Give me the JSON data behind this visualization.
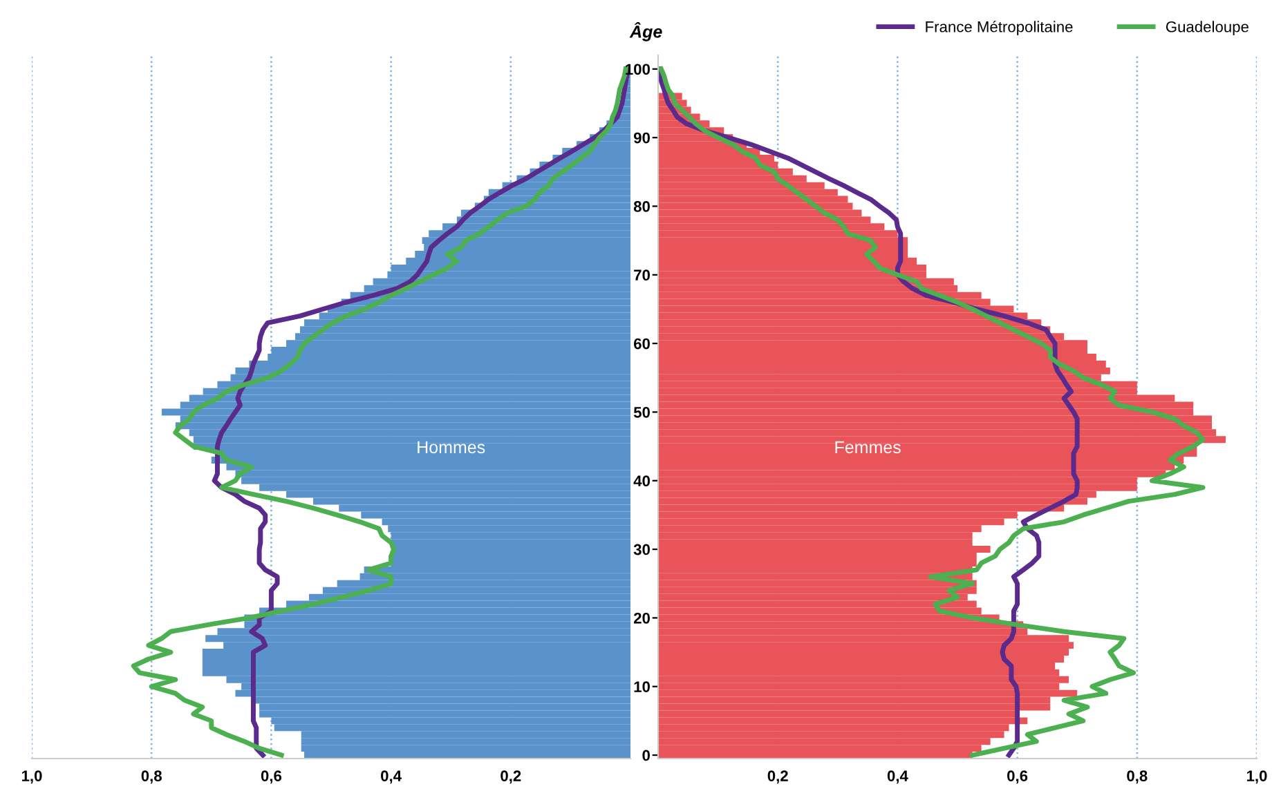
{
  "chart_data": [
    {
      "type": "bar",
      "orientation": "horizontal",
      "x": [
        0,
        1,
        2,
        3,
        4,
        5,
        6,
        7,
        8,
        9,
        10,
        11,
        12,
        13,
        14,
        15,
        16,
        17,
        18,
        19,
        20,
        21,
        22,
        23,
        24,
        25,
        26,
        27,
        28,
        29,
        30,
        31,
        32,
        33,
        34,
        35,
        36,
        37,
        38,
        39,
        40,
        41,
        42,
        43,
        44,
        45,
        46,
        47,
        48,
        49,
        50,
        51,
        52,
        53,
        54,
        55,
        56,
        57,
        58,
        59,
        60,
        61,
        62,
        63,
        64,
        65,
        66,
        67,
        68,
        69,
        70,
        71,
        72,
        73,
        74,
        75,
        76,
        77,
        78,
        79,
        80,
        81,
        82,
        83,
        84,
        85,
        86,
        87,
        88,
        89,
        90,
        91,
        92,
        93,
        94,
        95,
        96,
        97,
        98,
        99,
        100
      ],
      "xlim": [
        1.0,
        0
      ],
      "xticks": [
        {
          "value": 1.0,
          "label": "1,0"
        },
        {
          "value": 0.8,
          "label": "0,8"
        },
        {
          "value": 0.6,
          "label": "0,6"
        },
        {
          "value": 0.4,
          "label": "0,4"
        },
        {
          "value": 0.2,
          "label": "0,2"
        }
      ],
      "ylim": [
        -0.5,
        102
      ],
      "yticks": [
        0,
        10,
        20,
        30,
        40,
        50,
        60,
        70,
        80,
        90,
        100
      ],
      "grid": "x",
      "tick_labels": "x",
      "legend": false,
      "series": [
        {
          "name": "Hommes",
          "color": "#5a93cc",
          "values": [
            0.545,
            0.55,
            0.55,
            0.55,
            0.595,
            0.6,
            0.62,
            0.62,
            0.63,
            0.66,
            0.65,
            0.675,
            0.715,
            0.715,
            0.715,
            0.715,
            0.68,
            0.71,
            0.69,
            0.645,
            0.645,
            0.62,
            0.575,
            0.537,
            0.514,
            0.49,
            0.452,
            0.445,
            0.4,
            0.4,
            0.4,
            0.4,
            0.4,
            0.405,
            0.415,
            0.45,
            0.487,
            0.53,
            0.575,
            0.62,
            0.65,
            0.66,
            0.675,
            0.7,
            0.69,
            0.73,
            0.73,
            0.737,
            0.76,
            0.752,
            0.783,
            0.752,
            0.737,
            0.714,
            0.69,
            0.668,
            0.66,
            0.637,
            0.606,
            0.6,
            0.575,
            0.56,
            0.552,
            0.545,
            0.52,
            0.506,
            0.483,
            0.468,
            0.445,
            0.43,
            0.406,
            0.4,
            0.375,
            0.36,
            0.345,
            0.348,
            0.337,
            0.314,
            0.29,
            0.283,
            0.26,
            0.245,
            0.237,
            0.214,
            0.19,
            0.168,
            0.152,
            0.13,
            0.114,
            0.09,
            0.068,
            0.052,
            0.04,
            0.03,
            0.022,
            0.016,
            0.012,
            0.008,
            0.005,
            0.003,
            0.002
          ]
        },
        {
          "type": "line",
          "color": "#5a2a8c",
          "values": [
            0.614,
            0.625,
            0.625,
            0.625,
            0.625,
            0.63,
            0.63,
            0.63,
            0.63,
            0.63,
            0.63,
            0.63,
            0.63,
            0.63,
            0.63,
            0.63,
            0.61,
            0.615,
            0.633,
            0.62,
            0.62,
            0.6,
            0.6,
            0.6,
            0.6,
            0.59,
            0.59,
            0.61,
            0.62,
            0.62,
            0.62,
            0.618,
            0.618,
            0.618,
            0.61,
            0.61,
            0.62,
            0.645,
            0.66,
            0.683,
            0.695,
            0.69,
            0.69,
            0.69,
            0.69,
            0.69,
            0.687,
            0.683,
            0.675,
            0.668,
            0.66,
            0.652,
            0.656,
            0.652,
            0.645,
            0.637,
            0.633,
            0.63,
            0.625,
            0.62,
            0.62,
            0.618,
            0.614,
            0.606,
            0.552,
            0.514,
            0.475,
            0.43,
            0.39,
            0.368,
            0.356,
            0.348,
            0.34,
            0.337,
            0.333,
            0.32,
            0.306,
            0.29,
            0.28,
            0.268,
            0.252,
            0.237,
            0.218,
            0.198,
            0.175,
            0.156,
            0.137,
            0.118,
            0.098,
            0.079,
            0.06,
            0.045,
            0.033,
            0.022,
            0.018,
            0.014,
            0.012,
            0.01,
            0.008,
            0.006,
            0.005
          ]
        },
        {
          "type": "line",
          "color": "#4caf50",
          "values": [
            0.583,
            0.62,
            0.645,
            0.675,
            0.7,
            0.7,
            0.73,
            0.715,
            0.745,
            0.76,
            0.8,
            0.76,
            0.82,
            0.83,
            0.805,
            0.768,
            0.805,
            0.783,
            0.768,
            0.706,
            0.637,
            0.583,
            0.53,
            0.483,
            0.437,
            0.4,
            0.4,
            0.437,
            0.4,
            0.4,
            0.395,
            0.4,
            0.415,
            0.42,
            0.452,
            0.49,
            0.53,
            0.575,
            0.63,
            0.683,
            0.66,
            0.652,
            0.633,
            0.675,
            0.683,
            0.73,
            0.745,
            0.76,
            0.752,
            0.737,
            0.73,
            0.714,
            0.69,
            0.675,
            0.645,
            0.606,
            0.583,
            0.568,
            0.556,
            0.552,
            0.545,
            0.53,
            0.514,
            0.498,
            0.475,
            0.445,
            0.42,
            0.4,
            0.375,
            0.352,
            0.33,
            0.306,
            0.29,
            0.306,
            0.283,
            0.275,
            0.252,
            0.237,
            0.222,
            0.206,
            0.175,
            0.16,
            0.152,
            0.137,
            0.13,
            0.114,
            0.098,
            0.083,
            0.068,
            0.06,
            0.052,
            0.04,
            0.033,
            0.03,
            0.025,
            0.022,
            0.02,
            0.018,
            0.014,
            0.01,
            0.008
          ]
        }
      ]
    },
    {
      "type": "bar",
      "orientation": "horizontal",
      "ylabel": "Âge",
      "x": [
        0,
        1,
        2,
        3,
        4,
        5,
        6,
        7,
        8,
        9,
        10,
        11,
        12,
        13,
        14,
        15,
        16,
        17,
        18,
        19,
        20,
        21,
        22,
        23,
        24,
        25,
        26,
        27,
        28,
        29,
        30,
        31,
        32,
        33,
        34,
        35,
        36,
        37,
        38,
        39,
        40,
        41,
        42,
        43,
        44,
        45,
        46,
        47,
        48,
        49,
        50,
        51,
        52,
        53,
        54,
        55,
        56,
        57,
        58,
        59,
        60,
        61,
        62,
        63,
        64,
        65,
        66,
        67,
        68,
        69,
        70,
        71,
        72,
        73,
        74,
        75,
        76,
        77,
        78,
        79,
        80,
        81,
        82,
        83,
        84,
        85,
        86,
        87,
        88,
        89,
        90,
        91,
        92,
        93,
        94,
        95,
        96,
        97,
        98,
        99,
        100
      ],
      "xlim": [
        0,
        1.0
      ],
      "xticks": [
        {
          "value": 0.2,
          "label": "0,2"
        },
        {
          "value": 0.4,
          "label": "0,4"
        },
        {
          "value": 0.6,
          "label": "0,6"
        },
        {
          "value": 0.8,
          "label": "0,8"
        },
        {
          "value": 1.0,
          "label": "1,0"
        }
      ],
      "ylim": [
        -0.5,
        102
      ],
      "yticks": [
        0,
        10,
        20,
        30,
        40,
        50,
        60,
        70,
        80,
        90,
        100
      ],
      "grid": "x",
      "legend": "top right",
      "series": [
        {
          "name": "Femmes",
          "color": "#e8545a",
          "values": [
            0.525,
            0.54,
            0.555,
            0.578,
            0.586,
            0.617,
            0.6,
            0.655,
            0.655,
            0.7,
            0.67,
            0.686,
            0.67,
            0.663,
            0.678,
            0.686,
            0.694,
            0.686,
            0.617,
            0.61,
            0.57,
            0.54,
            0.532,
            0.517,
            0.532,
            0.532,
            0.525,
            0.525,
            0.532,
            0.532,
            0.555,
            0.525,
            0.525,
            0.54,
            0.578,
            0.6,
            0.678,
            0.717,
            0.732,
            0.8,
            0.8,
            0.848,
            0.863,
            0.878,
            0.9,
            0.9,
            0.948,
            0.932,
            0.925,
            0.925,
            0.894,
            0.894,
            0.863,
            0.8,
            0.8,
            0.74,
            0.755,
            0.748,
            0.732,
            0.717,
            0.717,
            0.678,
            0.655,
            0.64,
            0.617,
            0.594,
            0.555,
            0.54,
            0.5,
            0.494,
            0.448,
            0.448,
            0.432,
            0.417,
            0.417,
            0.417,
            0.4,
            0.378,
            0.355,
            0.34,
            0.325,
            0.317,
            0.3,
            0.278,
            0.248,
            0.225,
            0.2,
            0.194,
            0.17,
            0.148,
            0.125,
            0.11,
            0.086,
            0.07,
            0.055,
            0.048,
            0.04,
            null,
            null,
            null,
            null
          ]
        },
        {
          "type": "line",
          "name": "France Métropolitaine",
          "color": "#5a2a8c",
          "values": [
            0.586,
            0.594,
            0.6,
            0.6,
            0.6,
            0.6,
            0.6,
            0.6,
            0.6,
            0.6,
            0.598,
            0.59,
            0.59,
            0.59,
            0.578,
            0.575,
            0.578,
            0.59,
            0.594,
            0.594,
            0.594,
            0.594,
            0.6,
            0.6,
            0.6,
            0.6,
            0.594,
            0.61,
            0.625,
            0.636,
            0.636,
            0.636,
            0.632,
            0.617,
            0.61,
            0.632,
            0.655,
            0.678,
            0.698,
            0.7,
            0.7,
            0.694,
            0.694,
            0.694,
            0.694,
            0.7,
            0.7,
            0.7,
            0.7,
            0.7,
            0.694,
            0.686,
            0.678,
            0.69,
            0.682,
            0.675,
            0.667,
            0.663,
            0.663,
            0.663,
            0.663,
            0.655,
            0.648,
            0.617,
            0.578,
            0.532,
            0.494,
            0.448,
            0.425,
            0.41,
            0.4,
            0.4,
            0.405,
            0.405,
            0.405,
            0.405,
            0.405,
            0.4,
            0.398,
            0.386,
            0.37,
            0.355,
            0.332,
            0.31,
            0.286,
            0.263,
            0.24,
            0.217,
            0.186,
            0.155,
            0.117,
            0.078,
            0.048,
            0.032,
            0.025,
            0.017,
            0.013,
            0.01,
            0.006,
            0.003,
            0.002
          ]
        },
        {
          "type": "line",
          "name": "Guadeloupe",
          "color": "#4caf50",
          "values": [
            0.525,
            0.578,
            0.632,
            0.617,
            0.663,
            0.71,
            0.686,
            0.717,
            0.678,
            0.748,
            0.725,
            0.755,
            0.794,
            0.77,
            0.763,
            0.755,
            0.77,
            0.778,
            0.678,
            0.6,
            0.525,
            0.47,
            0.463,
            0.5,
            0.486,
            0.525,
            0.455,
            0.532,
            0.54,
            0.563,
            0.571,
            0.586,
            0.594,
            0.61,
            0.678,
            0.71,
            0.748,
            0.786,
            0.863,
            0.91,
            0.825,
            0.855,
            0.878,
            0.855,
            0.87,
            0.894,
            0.91,
            0.9,
            0.878,
            0.863,
            0.825,
            0.77,
            0.755,
            0.763,
            0.74,
            0.71,
            0.694,
            0.67,
            0.655,
            0.655,
            0.64,
            0.617,
            0.594,
            0.571,
            0.548,
            0.525,
            0.5,
            0.47,
            0.44,
            0.432,
            0.4,
            0.37,
            0.36,
            0.348,
            0.363,
            0.355,
            0.317,
            0.31,
            0.3,
            0.278,
            0.263,
            0.248,
            0.232,
            0.217,
            0.2,
            0.194,
            0.17,
            0.163,
            0.14,
            0.125,
            0.1,
            0.078,
            0.063,
            0.052,
            0.04,
            0.028,
            0.025,
            0.017,
            0.013,
            0.01,
            0.005
          ]
        }
      ]
    }
  ]
}
